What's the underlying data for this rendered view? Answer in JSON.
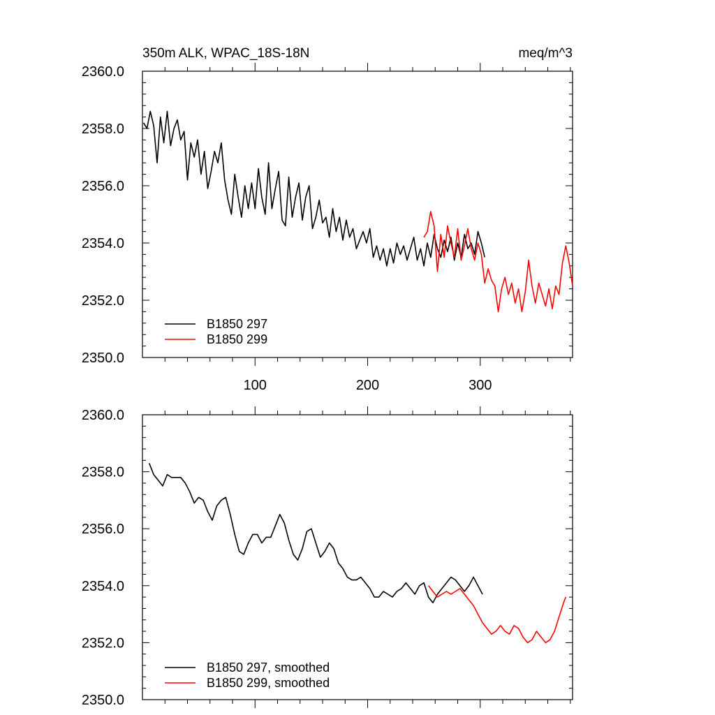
{
  "chart_data": [
    {
      "type": "line",
      "title": "350m ALK, WPAC_18S-18N",
      "units": "meq/m^3",
      "xlim": [
        0,
        382
      ],
      "ylim": [
        2350,
        2360
      ],
      "yticks": [
        2350,
        2352,
        2354,
        2356,
        2358,
        2360
      ],
      "ytick_labels": [
        "2350.0",
        "2352.0",
        "2354.0",
        "2356.0",
        "2358.0",
        "2360.0"
      ],
      "xticks": [
        100,
        200,
        300
      ],
      "xtick_labels": [
        "100",
        "200",
        "300"
      ],
      "grid": false,
      "legend_position": "bottom-left",
      "series": [
        {
          "name": "B1850 297",
          "color": "#000000",
          "x": [
            1,
            4,
            7,
            10,
            13,
            16,
            19,
            22,
            25,
            28,
            31,
            34,
            37,
            40,
            43,
            46,
            49,
            52,
            55,
            58,
            61,
            64,
            67,
            70,
            73,
            76,
            79,
            82,
            85,
            88,
            91,
            94,
            97,
            100,
            103,
            106,
            109,
            112,
            115,
            118,
            121,
            124,
            127,
            130,
            133,
            136,
            139,
            142,
            145,
            148,
            151,
            154,
            157,
            160,
            163,
            166,
            169,
            172,
            175,
            178,
            181,
            184,
            187,
            190,
            193,
            196,
            199,
            202,
            205,
            208,
            211,
            214,
            217,
            220,
            223,
            226,
            229,
            232,
            235,
            238,
            241,
            244,
            247,
            250,
            253,
            256,
            259,
            262,
            265,
            268,
            271,
            274,
            277,
            280,
            283,
            286,
            289,
            292,
            295,
            298,
            301,
            304
          ],
          "y": [
            2358.2,
            2358.0,
            2358.6,
            2358.1,
            2356.8,
            2358.4,
            2357.5,
            2358.6,
            2357.4,
            2358.0,
            2358.3,
            2357.6,
            2357.9,
            2356.2,
            2357.5,
            2357.0,
            2357.6,
            2356.4,
            2357.2,
            2355.9,
            2356.5,
            2357.2,
            2356.8,
            2357.5,
            2356.2,
            2355.5,
            2355.0,
            2356.4,
            2355.6,
            2354.9,
            2356.0,
            2355.2,
            2356.1,
            2355.2,
            2356.6,
            2355.6,
            2355.0,
            2356.8,
            2355.2,
            2355.9,
            2356.5,
            2354.8,
            2354.6,
            2356.3,
            2354.9,
            2355.6,
            2356.1,
            2354.8,
            2355.6,
            2356.0,
            2354.5,
            2354.9,
            2355.5,
            2354.7,
            2354.9,
            2354.2,
            2355.2,
            2354.4,
            2354.9,
            2354.1,
            2354.8,
            2354.2,
            2354.5,
            2353.8,
            2354.1,
            2354.4,
            2354.0,
            2354.5,
            2353.5,
            2353.9,
            2353.4,
            2353.8,
            2353.2,
            2353.8,
            2353.3,
            2354.0,
            2353.6,
            2353.9,
            2353.4,
            2353.8,
            2354.2,
            2353.4,
            2353.8,
            2353.2,
            2354.0,
            2353.5,
            2354.3,
            2353.8,
            2353.5,
            2354.1,
            2353.7,
            2354.2,
            2353.4,
            2354.0,
            2353.5,
            2354.3,
            2353.8,
            2354.0,
            2353.6,
            2354.4,
            2354.0,
            2353.5
          ]
        },
        {
          "name": "B1850 299",
          "color": "#ff0000",
          "x": [
            250,
            253,
            256,
            259,
            262,
            265,
            268,
            271,
            274,
            277,
            280,
            283,
            286,
            289,
            292,
            295,
            298,
            301,
            304,
            307,
            310,
            313,
            316,
            319,
            322,
            325,
            328,
            331,
            334,
            337,
            340,
            343,
            346,
            349,
            352,
            355,
            358,
            361,
            364,
            367,
            370,
            373,
            376,
            379,
            382
          ],
          "y": [
            2354.2,
            2354.4,
            2355.1,
            2354.6,
            2353.0,
            2354.3,
            2353.5,
            2354.6,
            2354.0,
            2353.5,
            2354.5,
            2353.4,
            2353.9,
            2354.5,
            2353.8,
            2353.4,
            2354.0,
            2353.6,
            2352.6,
            2353.1,
            2352.7,
            2352.5,
            2351.6,
            2352.4,
            2352.8,
            2352.2,
            2352.6,
            2351.9,
            2352.4,
            2351.6,
            2352.3,
            2353.4,
            2352.5,
            2351.9,
            2352.6,
            2352.2,
            2351.8,
            2352.4,
            2351.7,
            2352.5,
            2352.2,
            2353.3,
            2353.9,
            2353.3,
            2352.5
          ]
        }
      ]
    },
    {
      "type": "line",
      "xlim": [
        0,
        382
      ],
      "ylim": [
        2350,
        2360
      ],
      "yticks": [
        2350,
        2352,
        2354,
        2356,
        2358,
        2360
      ],
      "ytick_labels": [
        "2350.0",
        "2352.0",
        "2354.0",
        "2356.0",
        "2358.0",
        "2360.0"
      ],
      "grid": false,
      "legend_position": "bottom-left",
      "series": [
        {
          "name": "B1850 297, smoothed",
          "color": "#000000",
          "x": [
            6,
            10,
            14,
            18,
            22,
            26,
            30,
            34,
            38,
            42,
            46,
            50,
            54,
            58,
            62,
            66,
            70,
            74,
            78,
            82,
            86,
            90,
            94,
            98,
            102,
            106,
            110,
            114,
            118,
            122,
            126,
            130,
            134,
            138,
            142,
            146,
            150,
            154,
            158,
            162,
            166,
            170,
            174,
            178,
            182,
            186,
            190,
            194,
            198,
            202,
            206,
            210,
            214,
            218,
            222,
            226,
            230,
            234,
            238,
            242,
            246,
            250,
            254,
            258,
            262,
            266,
            270,
            274,
            278,
            282,
            286,
            290,
            294,
            298,
            302
          ],
          "y": [
            2358.3,
            2357.9,
            2357.7,
            2357.5,
            2357.9,
            2357.8,
            2357.8,
            2357.8,
            2357.6,
            2357.3,
            2356.9,
            2357.1,
            2357.0,
            2356.6,
            2356.3,
            2356.8,
            2357.0,
            2357.1,
            2356.5,
            2355.8,
            2355.2,
            2355.1,
            2355.5,
            2355.8,
            2355.8,
            2355.5,
            2355.7,
            2355.7,
            2356.1,
            2356.5,
            2356.2,
            2355.6,
            2355.1,
            2354.9,
            2355.3,
            2355.9,
            2356.0,
            2355.5,
            2355.0,
            2355.2,
            2355.5,
            2355.3,
            2354.8,
            2354.6,
            2354.3,
            2354.2,
            2354.2,
            2354.3,
            2354.1,
            2353.9,
            2353.6,
            2353.6,
            2353.8,
            2353.7,
            2353.6,
            2353.8,
            2353.9,
            2354.1,
            2353.9,
            2353.7,
            2354.0,
            2354.1,
            2353.6,
            2353.4,
            2353.7,
            2353.9,
            2354.1,
            2354.3,
            2354.2,
            2354.0,
            2353.8,
            2354.0,
            2354.3,
            2354.0,
            2353.7
          ]
        },
        {
          "name": "B1850 299, smoothed",
          "color": "#ff0000",
          "x": [
            254,
            258,
            262,
            266,
            270,
            274,
            278,
            282,
            286,
            290,
            294,
            298,
            302,
            306,
            310,
            314,
            318,
            322,
            326,
            330,
            334,
            338,
            342,
            346,
            350,
            354,
            358,
            362,
            366,
            370,
            374,
            376
          ],
          "y": [
            2354.0,
            2353.8,
            2353.6,
            2353.7,
            2353.8,
            2353.7,
            2353.8,
            2353.9,
            2353.7,
            2353.5,
            2353.3,
            2353.0,
            2352.7,
            2352.5,
            2352.3,
            2352.4,
            2352.6,
            2352.4,
            2352.3,
            2352.6,
            2352.5,
            2352.2,
            2352.0,
            2352.1,
            2352.4,
            2352.2,
            2352.0,
            2352.1,
            2352.4,
            2352.9,
            2353.4,
            2353.6
          ]
        }
      ]
    }
  ]
}
